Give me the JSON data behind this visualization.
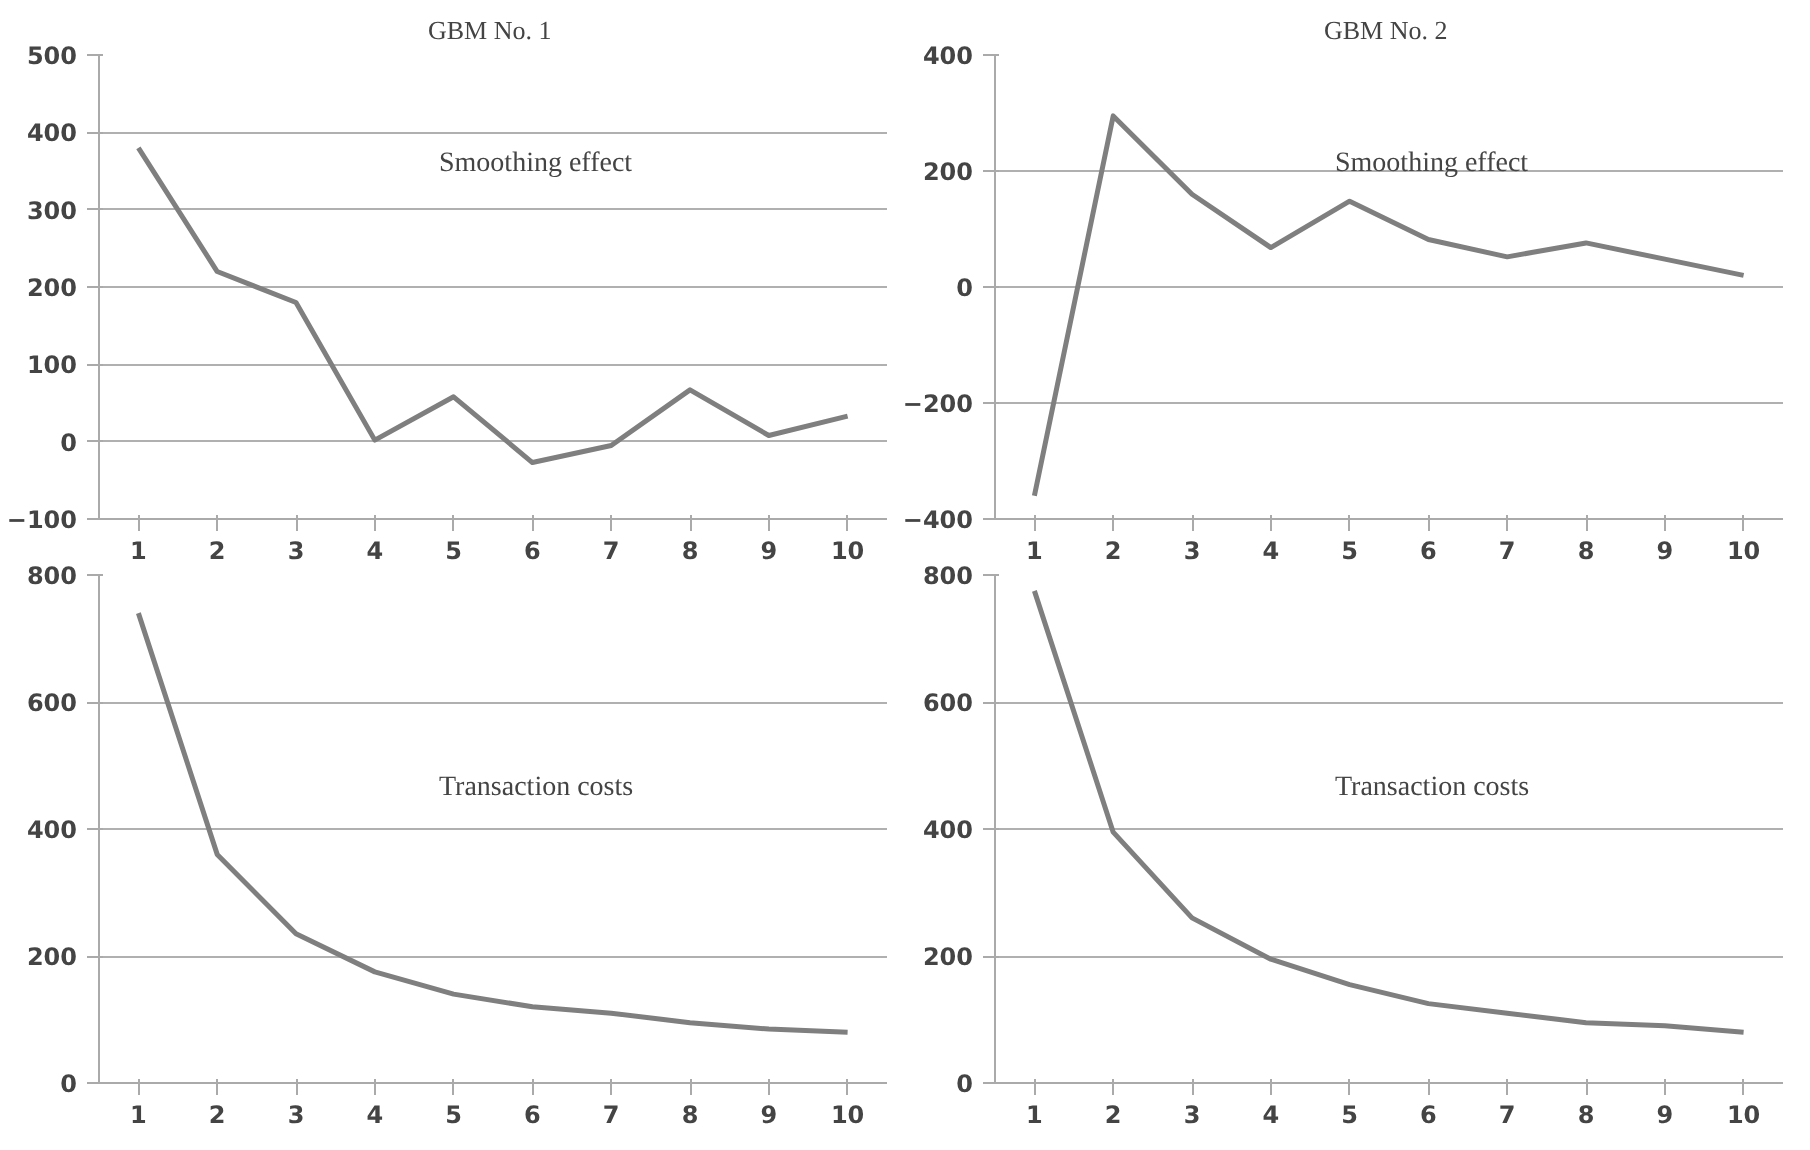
{
  "chart_data": [
    {
      "type": "line",
      "title": "GBM  No. 1",
      "categories": [
        "1",
        "2",
        "3",
        "4",
        "5",
        "6",
        "7",
        "8",
        "9",
        "10"
      ],
      "series": [
        {
          "color": "#7f7f7f",
          "values": [
            380,
            220,
            180,
            2,
            58,
            -27,
            -5,
            67,
            8,
            33
          ]
        }
      ],
      "ylim": [
        -100,
        500
      ],
      "yticks": [
        -100,
        0,
        100,
        200,
        300,
        400,
        500
      ],
      "grid": "y",
      "annotations": [
        "Smoothing effect"
      ]
    },
    {
      "type": "line",
      "title": "GBM  No. 2",
      "categories": [
        "1",
        "2",
        "3",
        "4",
        "5",
        "6",
        "7",
        "8",
        "9",
        "10"
      ],
      "series": [
        {
          "color": "#7f7f7f",
          "values": [
            -360,
            295,
            160,
            68,
            148,
            82,
            52,
            76,
            48,
            20
          ]
        }
      ],
      "ylim": [
        -400,
        400
      ],
      "yticks": [
        -400,
        -200,
        0,
        200,
        400
      ],
      "grid": "y",
      "annotations": [
        "Smoothing effect"
      ]
    },
    {
      "type": "line",
      "categories": [
        "1",
        "2",
        "3",
        "4",
        "5",
        "6",
        "7",
        "8",
        "9",
        "10"
      ],
      "series": [
        {
          "color": "#7f7f7f",
          "values": [
            740,
            360,
            235,
            175,
            140,
            120,
            110,
            95,
            85,
            80
          ]
        }
      ],
      "ylim": [
        0,
        800
      ],
      "yticks": [
        0,
        200,
        400,
        600,
        800
      ],
      "grid": "y",
      "annotations": [
        "Transaction costs"
      ]
    },
    {
      "type": "line",
      "categories": [
        "1",
        "2",
        "3",
        "4",
        "5",
        "6",
        "7",
        "8",
        "9",
        "10"
      ],
      "series": [
        {
          "color": "#7f7f7f",
          "values": [
            775,
            395,
            260,
            195,
            155,
            125,
            110,
            95,
            90,
            80
          ]
        }
      ],
      "ylim": [
        0,
        800
      ],
      "yticks": [
        0,
        200,
        400,
        600,
        800
      ],
      "grid": "y",
      "annotations": [
        "Transaction costs"
      ]
    }
  ]
}
